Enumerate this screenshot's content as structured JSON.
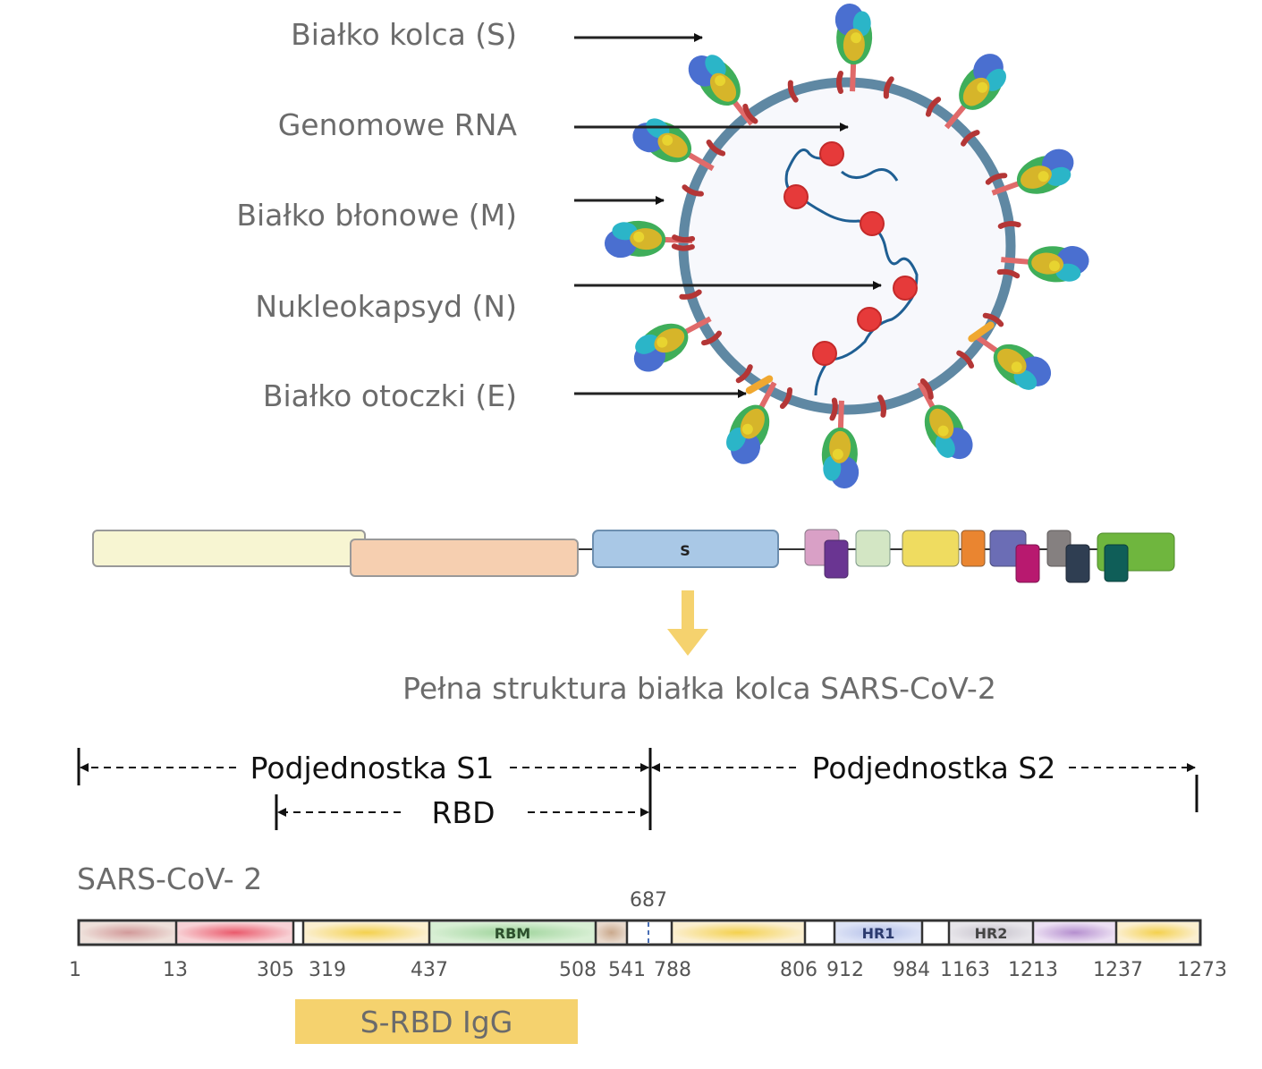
{
  "virus_labels": [
    {
      "text": "Białko kolca (S)"
    },
    {
      "text": "Genomowe RNA"
    },
    {
      "text": "Białko błonowe (M)"
    },
    {
      "text": "Nukleokapsyd (N)"
    },
    {
      "text": "Białko otoczki (E)"
    }
  ],
  "genome": {
    "s_label": "S",
    "colors": {
      "orf1a": "#f7f5d2",
      "orf1b": "#f6cfb0",
      "s": "#a9c8e6"
    }
  },
  "arrow_color": "#f5d26e",
  "full_structure_title": "Pełna struktura białka kolca SARS-CoV-2",
  "subunits": {
    "s1": "Podjednostka S1",
    "s2": "Podjednostka S2",
    "rbd": "RBD"
  },
  "protein_map": {
    "title": "SARS-CoV- 2",
    "cleavage_label": "687",
    "segment_labels": {
      "rbm": "RBM",
      "hr1": "HR1",
      "hr2": "HR2"
    },
    "positions": [
      "1",
      "13",
      "305",
      "319",
      "437",
      "508",
      "541",
      "788",
      "806",
      "912",
      "984",
      "1163",
      "1213",
      "1237",
      "1273"
    ]
  },
  "igg_label": "S-RBD IgG",
  "igg_color": "#f5d26e"
}
